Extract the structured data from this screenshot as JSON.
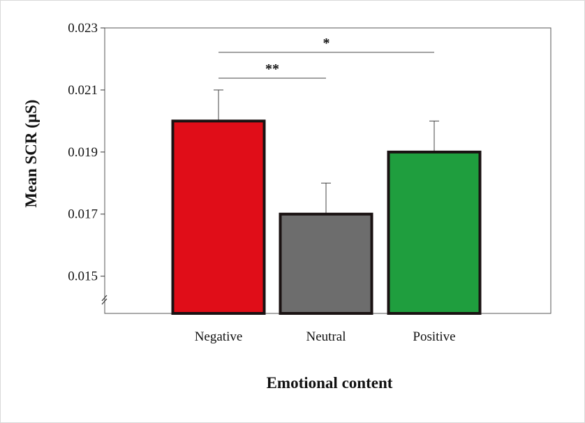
{
  "chart_data": {
    "type": "bar",
    "categories": [
      "Negative",
      "Neutral",
      "Positive"
    ],
    "values": [
      0.02,
      0.017,
      0.019
    ],
    "errors": [
      0.001,
      0.001,
      0.001
    ],
    "colors": [
      "#e00d18",
      "#6d6d6d",
      "#1f9e3e"
    ],
    "xlabel": "Emotional content",
    "ylabel": "Mean SCR (μS)",
    "ylim": [
      0.0138,
      0.023
    ],
    "yticks": [
      0.015,
      0.017,
      0.019,
      0.021,
      0.023
    ],
    "ytick_labels": [
      "0.015",
      "0.017",
      "0.019",
      "0.021",
      "0.023"
    ],
    "axis_break": true,
    "grid": false,
    "significance": [
      {
        "from": "Negative",
        "to": "Positive",
        "label": "*"
      },
      {
        "from": "Negative",
        "to": "Neutral",
        "label": "**"
      }
    ]
  }
}
